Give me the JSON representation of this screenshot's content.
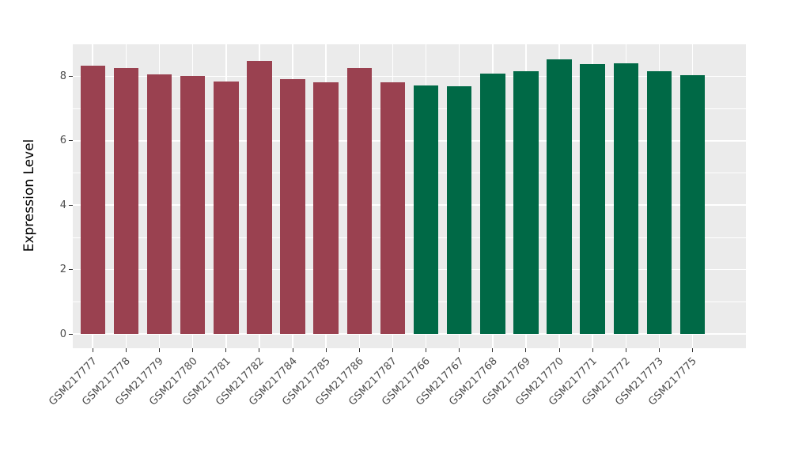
{
  "chart_data": {
    "type": "bar",
    "title": "",
    "xlabel": "",
    "ylabel": "Expression Level",
    "categories": [
      "GSM217777",
      "GSM217778",
      "GSM217779",
      "GSM217780",
      "GSM217781",
      "GSM217782",
      "GSM217784",
      "GSM217785",
      "GSM217786",
      "GSM217787",
      "GSM217766",
      "GSM217767",
      "GSM217768",
      "GSM217769",
      "GSM217770",
      "GSM217771",
      "GSM217772",
      "GSM217773",
      "GSM217775"
    ],
    "values": [
      8.32,
      8.26,
      8.06,
      8.0,
      7.84,
      8.47,
      7.92,
      7.81,
      8.26,
      7.81,
      7.71,
      7.68,
      8.09,
      8.15,
      8.53,
      8.37,
      8.4,
      8.15,
      8.03
    ],
    "groups": [
      "group1",
      "group1",
      "group1",
      "group1",
      "group1",
      "group1",
      "group1",
      "group1",
      "group1",
      "group1",
      "group2",
      "group2",
      "group2",
      "group2",
      "group2",
      "group2",
      "group2",
      "group2",
      "group2"
    ],
    "group_colors": {
      "group1": "#9A4150",
      "group2": "#006946"
    },
    "yticks": [
      0,
      2,
      4,
      6,
      8
    ],
    "yticks_minor": [
      1,
      3,
      5,
      7,
      9
    ],
    "ylim": [
      0,
      9
    ],
    "grid": "on",
    "legend": "none",
    "panel_background": "#EBEBEB",
    "gridline_color": "#FFFFFF",
    "tick_text_color": "#4D4D4D",
    "tick_mark_color": "#333333"
  }
}
